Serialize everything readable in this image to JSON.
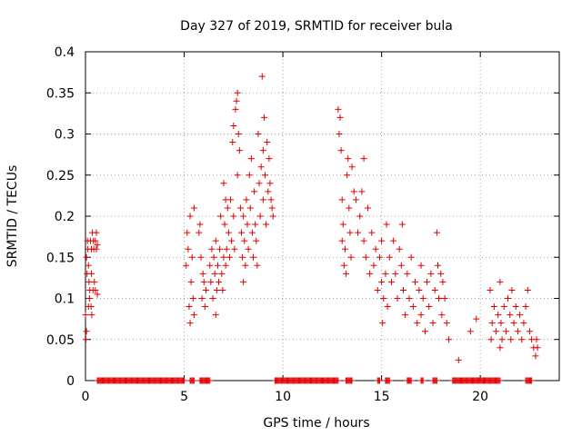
{
  "chart_data": {
    "type": "scatter",
    "title": "Day 327 of 2019, SRMTID for receiver bula",
    "xlabel": "GPS time / hours",
    "ylabel": "SRMTID / TECUs",
    "xlim": [
      0,
      24
    ],
    "ylim": [
      0,
      0.4
    ],
    "xticks": [
      0,
      5,
      10,
      15,
      20
    ],
    "yticks": [
      0,
      0.05,
      0.1,
      0.15,
      0.2,
      0.25,
      0.3,
      0.35,
      0.4
    ],
    "xtick_labels": [
      "0",
      "5",
      "10",
      "15",
      "20"
    ],
    "ytick_labels": [
      "0",
      "0.05",
      "0.1",
      "0.15",
      "0.2",
      "0.25",
      "0.3",
      "0.35",
      "0.4"
    ],
    "grid": true,
    "marker": "+",
    "color": "#e00000",
    "series": [
      {
        "name": "SRMTID",
        "points": [
          [
            0.0,
            0.08
          ],
          [
            0.02,
            0.05
          ],
          [
            0.05,
            0.06
          ],
          [
            0.05,
            0.15
          ],
          [
            0.08,
            0.13
          ],
          [
            0.1,
            0.17
          ],
          [
            0.12,
            0.16
          ],
          [
            0.15,
            0.14
          ],
          [
            0.15,
            0.09
          ],
          [
            0.18,
            0.12
          ],
          [
            0.2,
            0.1
          ],
          [
            0.22,
            0.11
          ],
          [
            0.25,
            0.17
          ],
          [
            0.28,
            0.09
          ],
          [
            0.3,
            0.13
          ],
          [
            0.3,
            0.16
          ],
          [
            0.32,
            0.08
          ],
          [
            0.35,
            0.18
          ],
          [
            0.38,
            0.11
          ],
          [
            0.4,
            0.17
          ],
          [
            0.42,
            0.16
          ],
          [
            0.45,
            0.12
          ],
          [
            0.5,
            0.17
          ],
          [
            0.5,
            0.11
          ],
          [
            0.55,
            0.18
          ],
          [
            0.55,
            0.16
          ],
          [
            0.6,
            0.165
          ],
          [
            0.6,
            0.105
          ],
          [
            5.1,
            0.14
          ],
          [
            5.15,
            0.18
          ],
          [
            5.2,
            0.16
          ],
          [
            5.25,
            0.09
          ],
          [
            5.3,
            0.2
          ],
          [
            5.3,
            0.07
          ],
          [
            5.35,
            0.12
          ],
          [
            5.4,
            0.15
          ],
          [
            5.45,
            0.1
          ],
          [
            5.5,
            0.21
          ],
          [
            5.5,
            0.08
          ],
          [
            5.75,
            0.18
          ],
          [
            5.8,
            0.19
          ],
          [
            5.85,
            0.15
          ],
          [
            5.9,
            0.1
          ],
          [
            5.95,
            0.13
          ],
          [
            6.0,
            0.12
          ],
          [
            6.05,
            0.09
          ],
          [
            6.1,
            0.11
          ],
          [
            6.3,
            0.14
          ],
          [
            6.35,
            0.12
          ],
          [
            6.4,
            0.16
          ],
          [
            6.45,
            0.1
          ],
          [
            6.5,
            0.15
          ],
          [
            6.55,
            0.13
          ],
          [
            6.6,
            0.17
          ],
          [
            6.6,
            0.08
          ],
          [
            6.65,
            0.11
          ],
          [
            6.7,
            0.14
          ],
          [
            6.75,
            0.12
          ],
          [
            6.8,
            0.16
          ],
          [
            6.85,
            0.2
          ],
          [
            6.9,
            0.13
          ],
          [
            6.95,
            0.11
          ],
          [
            7.0,
            0.15
          ],
          [
            7.0,
            0.24
          ],
          [
            7.05,
            0.19
          ],
          [
            7.1,
            0.22
          ],
          [
            7.1,
            0.14
          ],
          [
            7.15,
            0.16
          ],
          [
            7.2,
            0.21
          ],
          [
            7.25,
            0.18
          ],
          [
            7.3,
            0.15
          ],
          [
            7.35,
            0.22
          ],
          [
            7.4,
            0.17
          ],
          [
            7.45,
            0.29
          ],
          [
            7.5,
            0.31
          ],
          [
            7.5,
            0.2
          ],
          [
            7.55,
            0.16
          ],
          [
            7.6,
            0.33
          ],
          [
            7.65,
            0.34
          ],
          [
            7.7,
            0.35
          ],
          [
            7.7,
            0.25
          ],
          [
            7.75,
            0.3
          ],
          [
            7.8,
            0.28
          ],
          [
            7.85,
            0.21
          ],
          [
            7.9,
            0.18
          ],
          [
            7.95,
            0.15
          ],
          [
            8.0,
            0.12
          ],
          [
            8.0,
            0.2
          ],
          [
            8.05,
            0.17
          ],
          [
            8.1,
            0.14
          ],
          [
            8.15,
            0.22
          ],
          [
            8.2,
            0.19
          ],
          [
            8.25,
            0.16
          ],
          [
            8.3,
            0.25
          ],
          [
            8.35,
            0.21
          ],
          [
            8.4,
            0.27
          ],
          [
            8.45,
            0.18
          ],
          [
            8.5,
            0.15
          ],
          [
            8.55,
            0.23
          ],
          [
            8.6,
            0.19
          ],
          [
            8.65,
            0.17
          ],
          [
            8.7,
            0.14
          ],
          [
            8.75,
            0.3
          ],
          [
            8.8,
            0.24
          ],
          [
            8.85,
            0.2
          ],
          [
            8.9,
            0.26
          ],
          [
            8.95,
            0.37
          ],
          [
            9.0,
            0.28
          ],
          [
            9.0,
            0.22
          ],
          [
            9.05,
            0.32
          ],
          [
            9.1,
            0.25
          ],
          [
            9.15,
            0.19
          ],
          [
            9.2,
            0.29
          ],
          [
            9.25,
            0.23
          ],
          [
            9.3,
            0.27
          ],
          [
            9.35,
            0.24
          ],
          [
            9.4,
            0.22
          ],
          [
            9.45,
            0.21
          ],
          [
            9.5,
            0.2
          ],
          [
            12.8,
            0.33
          ],
          [
            12.85,
            0.3
          ],
          [
            12.9,
            0.32
          ],
          [
            12.95,
            0.28
          ],
          [
            13.0,
            0.22
          ],
          [
            13.0,
            0.17
          ],
          [
            13.05,
            0.19
          ],
          [
            13.1,
            0.14
          ],
          [
            13.15,
            0.16
          ],
          [
            13.2,
            0.13
          ],
          [
            13.25,
            0.25
          ],
          [
            13.3,
            0.27
          ],
          [
            13.35,
            0.21
          ],
          [
            13.4,
            0.18
          ],
          [
            13.45,
            0.15
          ],
          [
            13.5,
            0.26
          ],
          [
            13.6,
            0.23
          ],
          [
            13.7,
            0.22
          ],
          [
            13.8,
            0.18
          ],
          [
            13.9,
            0.2
          ],
          [
            14.0,
            0.23
          ],
          [
            14.1,
            0.27
          ],
          [
            14.1,
            0.17
          ],
          [
            14.2,
            0.15
          ],
          [
            14.3,
            0.21
          ],
          [
            14.4,
            0.13
          ],
          [
            14.5,
            0.18
          ],
          [
            14.6,
            0.14
          ],
          [
            14.7,
            0.16
          ],
          [
            14.8,
            0.11
          ],
          [
            14.9,
            0.15
          ],
          [
            15.0,
            0.12
          ],
          [
            15.0,
            0.17
          ],
          [
            15.05,
            0.07
          ],
          [
            15.1,
            0.1
          ],
          [
            15.2,
            0.13
          ],
          [
            15.25,
            0.19
          ],
          [
            15.3,
            0.09
          ],
          [
            15.4,
            0.15
          ],
          [
            15.5,
            0.12
          ],
          [
            15.6,
            0.17
          ],
          [
            15.7,
            0.13
          ],
          [
            15.8,
            0.1
          ],
          [
            15.9,
            0.16
          ],
          [
            16.0,
            0.14
          ],
          [
            16.05,
            0.19
          ],
          [
            16.1,
            0.11
          ],
          [
            16.2,
            0.08
          ],
          [
            16.3,
            0.13
          ],
          [
            16.4,
            0.1
          ],
          [
            16.5,
            0.15
          ],
          [
            16.6,
            0.09
          ],
          [
            16.7,
            0.12
          ],
          [
            16.8,
            0.07
          ],
          [
            16.9,
            0.11
          ],
          [
            17.0,
            0.14
          ],
          [
            17.0,
            0.08
          ],
          [
            17.1,
            0.1
          ],
          [
            17.2,
            0.06
          ],
          [
            17.3,
            0.12
          ],
          [
            17.4,
            0.09
          ],
          [
            17.5,
            0.13
          ],
          [
            17.6,
            0.07
          ],
          [
            17.7,
            0.11
          ],
          [
            17.8,
            0.18
          ],
          [
            17.85,
            0.14
          ],
          [
            17.9,
            0.1
          ],
          [
            18.0,
            0.13
          ],
          [
            18.05,
            0.08
          ],
          [
            18.1,
            0.12
          ],
          [
            18.2,
            0.1
          ],
          [
            18.3,
            0.07
          ],
          [
            18.4,
            0.05
          ],
          [
            18.9,
            0.025
          ],
          [
            19.5,
            0.06
          ],
          [
            19.8,
            0.075
          ],
          [
            20.5,
            0.11
          ],
          [
            20.55,
            0.05
          ],
          [
            20.6,
            0.07
          ],
          [
            20.7,
            0.09
          ],
          [
            20.8,
            0.06
          ],
          [
            20.9,
            0.08
          ],
          [
            21.0,
            0.12
          ],
          [
            21.0,
            0.04
          ],
          [
            21.05,
            0.07
          ],
          [
            21.1,
            0.05
          ],
          [
            21.2,
            0.09
          ],
          [
            21.3,
            0.06
          ],
          [
            21.4,
            0.1
          ],
          [
            21.5,
            0.08
          ],
          [
            21.55,
            0.05
          ],
          [
            21.6,
            0.11
          ],
          [
            21.7,
            0.07
          ],
          [
            21.8,
            0.09
          ],
          [
            21.9,
            0.06
          ],
          [
            22.0,
            0.08
          ],
          [
            22.1,
            0.05
          ],
          [
            22.2,
            0.07
          ],
          [
            22.3,
            0.09
          ],
          [
            22.4,
            0.11
          ],
          [
            22.5,
            0.06
          ],
          [
            22.6,
            0.05
          ],
          [
            22.7,
            0.04
          ],
          [
            22.8,
            0.03
          ],
          [
            22.85,
            0.05
          ],
          [
            22.9,
            0.04
          ]
        ]
      },
      {
        "name": "zero",
        "x_ranges": [
          [
            0.6,
            5.0
          ],
          [
            5.3,
            5.5
          ],
          [
            5.8,
            6.3
          ],
          [
            9.6,
            12.8
          ],
          [
            13.2,
            13.5
          ],
          [
            14.8,
            14.9
          ],
          [
            15.2,
            15.4
          ],
          [
            16.3,
            16.5
          ],
          [
            17.0,
            17.1
          ],
          [
            17.6,
            17.8
          ],
          [
            18.6,
            21.0
          ],
          [
            22.3,
            22.6
          ]
        ],
        "y": 0
      }
    ]
  }
}
